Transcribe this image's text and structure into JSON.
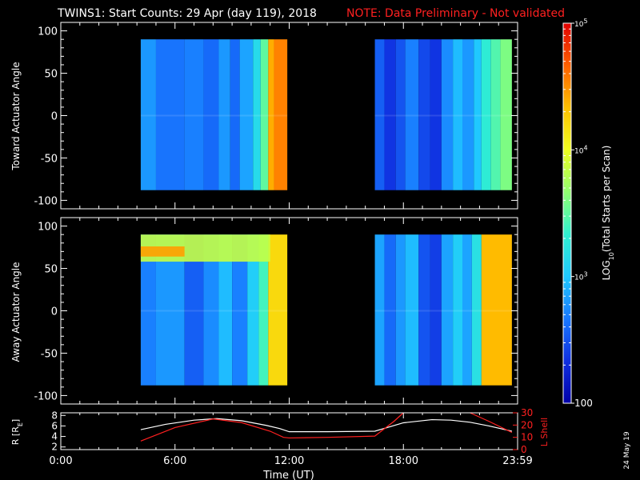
{
  "header": {
    "title": "TWINS1: Start Counts: 29 Apr (day 119), 2018",
    "note": "NOTE: Data Preliminary - Not validated"
  },
  "footer": {
    "date_stamp": "24 May 19"
  },
  "colors": {
    "background": "#000000",
    "axes": "#ffffff",
    "note": "#ff2020",
    "lshell": "#ff2020",
    "radius": "#ffffff",
    "colormap": [
      "#0000a8",
      "#1030e0",
      "#1878ff",
      "#20c8ff",
      "#30f0d0",
      "#90ff70",
      "#f0ff20",
      "#ffc000",
      "#ff6000",
      "#e00000"
    ]
  },
  "chart_data": [
    {
      "type": "heatmap",
      "panel": "toward",
      "ylabel": "Toward Actuator Angle",
      "xlim": [
        0,
        24
      ],
      "ylim": [
        -110,
        110
      ],
      "yticks": [
        100,
        50,
        0,
        -50,
        -100
      ],
      "x_tick_labels": [],
      "data_ranges_hours": [
        [
          4.2,
          11.9
        ],
        [
          16.5,
          23.7
        ]
      ],
      "angle_range": [
        -88,
        90
      ],
      "column_log10_levels": [
        {
          "start": 4.2,
          "end": 5.0,
          "v": 2.8
        },
        {
          "start": 5.0,
          "end": 6.5,
          "v": 2.65
        },
        {
          "start": 6.5,
          "end": 7.5,
          "v": 2.7
        },
        {
          "start": 7.5,
          "end": 8.3,
          "v": 2.6
        },
        {
          "start": 8.3,
          "end": 8.9,
          "v": 2.8
        },
        {
          "start": 8.9,
          "end": 9.4,
          "v": 2.6
        },
        {
          "start": 9.4,
          "end": 10.1,
          "v": 2.85
        },
        {
          "start": 10.1,
          "end": 10.5,
          "v": 3.15
        },
        {
          "start": 10.5,
          "end": 10.9,
          "v": 3.5
        },
        {
          "start": 10.9,
          "end": 11.2,
          "v": 4.4
        },
        {
          "start": 11.2,
          "end": 11.9,
          "v": 4.55
        },
        {
          "start": 16.5,
          "end": 17.0,
          "v": 2.55
        },
        {
          "start": 17.0,
          "end": 17.6,
          "v": 2.35
        },
        {
          "start": 17.6,
          "end": 18.1,
          "v": 2.5
        },
        {
          "start": 18.1,
          "end": 18.8,
          "v": 2.7
        },
        {
          "start": 18.8,
          "end": 19.4,
          "v": 2.45
        },
        {
          "start": 19.4,
          "end": 20.0,
          "v": 2.35
        },
        {
          "start": 20.0,
          "end": 20.6,
          "v": 2.75
        },
        {
          "start": 20.6,
          "end": 21.1,
          "v": 2.95
        },
        {
          "start": 21.1,
          "end": 21.7,
          "v": 2.8
        },
        {
          "start": 21.7,
          "end": 22.1,
          "v": 3.0
        },
        {
          "start": 22.1,
          "end": 22.6,
          "v": 3.3
        },
        {
          "start": 22.6,
          "end": 23.1,
          "v": 3.45
        },
        {
          "start": 23.1,
          "end": 23.7,
          "v": 3.6
        }
      ],
      "hot_bands": []
    },
    {
      "type": "heatmap",
      "panel": "away",
      "ylabel": "Away Actuator Angle",
      "xlim": [
        0,
        24
      ],
      "ylim": [
        -110,
        110
      ],
      "yticks": [
        100,
        50,
        0,
        -50,
        -100
      ],
      "x_tick_labels": [],
      "data_ranges_hours": [
        [
          4.2,
          11.9
        ],
        [
          16.5,
          23.7
        ]
      ],
      "angle_range": [
        -88,
        90
      ],
      "column_log10_levels": [
        {
          "start": 4.2,
          "end": 5.0,
          "v": 2.7
        },
        {
          "start": 5.0,
          "end": 6.5,
          "v": 2.8
        },
        {
          "start": 6.5,
          "end": 7.5,
          "v": 2.55
        },
        {
          "start": 7.5,
          "end": 8.3,
          "v": 2.75
        },
        {
          "start": 8.3,
          "end": 9.0,
          "v": 2.95
        },
        {
          "start": 9.0,
          "end": 9.8,
          "v": 2.7
        },
        {
          "start": 9.8,
          "end": 10.4,
          "v": 3.05
        },
        {
          "start": 10.4,
          "end": 10.9,
          "v": 3.4
        },
        {
          "start": 10.9,
          "end": 11.9,
          "v": 4.2
        },
        {
          "start": 16.5,
          "end": 17.0,
          "v": 2.85
        },
        {
          "start": 17.0,
          "end": 17.6,
          "v": 2.6
        },
        {
          "start": 17.6,
          "end": 18.1,
          "v": 2.8
        },
        {
          "start": 18.1,
          "end": 18.8,
          "v": 2.95
        },
        {
          "start": 18.8,
          "end": 19.4,
          "v": 2.5
        },
        {
          "start": 19.4,
          "end": 20.0,
          "v": 2.4
        },
        {
          "start": 20.0,
          "end": 20.6,
          "v": 2.85
        },
        {
          "start": 20.6,
          "end": 21.1,
          "v": 3.05
        },
        {
          "start": 21.1,
          "end": 21.6,
          "v": 2.85
        },
        {
          "start": 21.6,
          "end": 22.1,
          "v": 3.2
        },
        {
          "start": 22.1,
          "end": 23.7,
          "v": 4.35
        }
      ],
      "hot_bands": [
        {
          "start": 4.2,
          "end": 11.0,
          "a_min": 58,
          "a_max": 90,
          "v": 3.85
        },
        {
          "start": 4.2,
          "end": 6.5,
          "a_min": 64,
          "a_max": 76,
          "v": 4.45
        }
      ]
    },
    {
      "type": "line",
      "panel": "ephemeris",
      "ylabel": "R [R",
      "ylabel_sub": "E",
      "ylabel_close": "]",
      "y2label": "L Shell",
      "xlabel": "Time (UT)",
      "xlim": [
        0,
        24
      ],
      "x_ticks": [
        0,
        6,
        12,
        18,
        24
      ],
      "x_tick_labels": [
        "0:00",
        "6:00",
        "12:00",
        "18:00",
        "23:59"
      ],
      "ylim": [
        1.5,
        8.5
      ],
      "yticks": [
        2,
        4,
        6,
        8
      ],
      "y2lim": [
        0,
        30
      ],
      "y2ticks": [
        0,
        10,
        20,
        30
      ],
      "series": [
        {
          "name": "R",
          "axis": "left",
          "x": [
            4.2,
            5.5,
            7.0,
            8.2,
            9.5,
            10.8,
            11.5,
            12.0,
            14.0,
            16.5,
            18.0,
            19.5,
            20.5,
            21.5,
            22.5,
            23.7
          ],
          "y": [
            5.3,
            6.3,
            7.1,
            7.4,
            7.0,
            6.1,
            5.5,
            4.9,
            4.9,
            5.0,
            6.6,
            7.2,
            7.1,
            6.7,
            6.0,
            5.0
          ]
        },
        {
          "name": "L Shell",
          "axis": "right",
          "segments": [
            {
              "x": [
                4.2,
                6.0,
                8.0,
                9.5,
                11.0,
                11.7,
                12.0,
                14.0,
                16.5,
                17.5,
                18.0
              ],
              "y": [
                7,
                18,
                25,
                22,
                15,
                10,
                9.5,
                10,
                11,
                23,
                30
              ]
            },
            {
              "x": [
                21.5,
                22.5,
                23.7
              ],
              "y": [
                30,
                23,
                14
              ]
            }
          ]
        }
      ]
    },
    {
      "type": "colorbar",
      "label": "LOG",
      "label_sub": "10",
      "label_rest": "(Total Starts per Scan)",
      "ticks": [
        {
          "value": 2,
          "base": "100",
          "exp": ""
        },
        {
          "value": 3,
          "base": "10",
          "exp": "3"
        },
        {
          "value": 4,
          "base": "10",
          "exp": "4"
        },
        {
          "value": 5,
          "base": "10",
          "exp": "5"
        }
      ],
      "range": [
        2,
        5
      ]
    }
  ]
}
